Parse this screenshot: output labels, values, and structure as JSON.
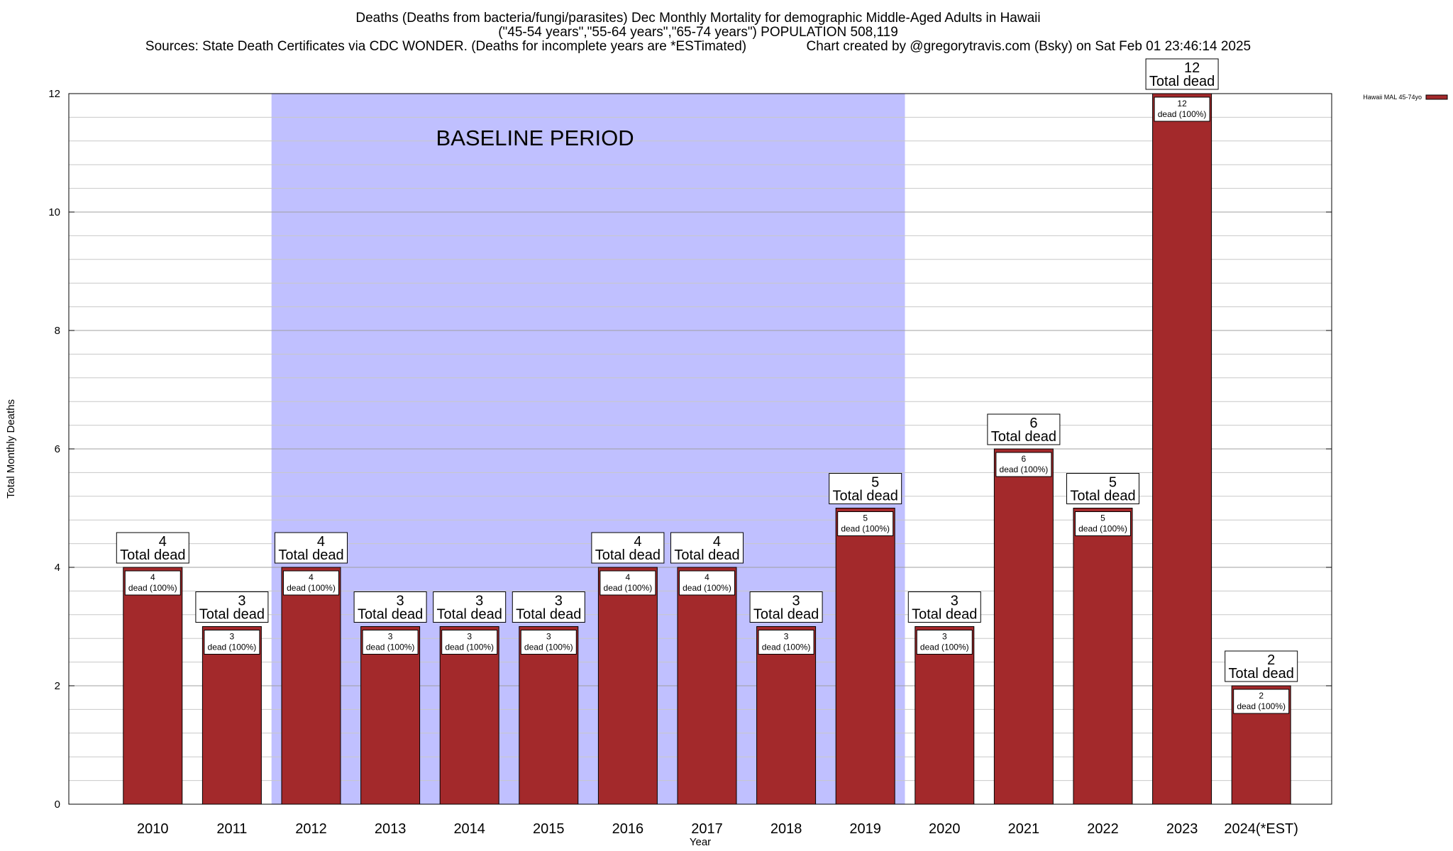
{
  "chart_data": {
    "type": "bar",
    "title_lines": [
      "Deaths (Deaths from bacteria/fungi/parasites) Dec Monthly Mortality for demographic Middle-Aged Adults in Hawaii",
      "(\"45-54 years\",\"55-64 years\",\"65-74 years\") POPULATION 508,119",
      "Sources: State Death Certificates via CDC WONDER. (Deaths for incomplete years are *ESTimated)                Chart created by @gregorytravis.com (Bsky) on Sat Feb 01 23:46:14 2025"
    ],
    "xlabel": "Year",
    "ylabel": "Total Monthly Deaths",
    "ylim": [
      0,
      12
    ],
    "y_ticks": [
      "0",
      "2",
      "4",
      "6",
      "8",
      "10",
      "12"
    ],
    "minor_grid_step": 0.4,
    "categories": [
      "2010",
      "2011",
      "2012",
      "2013",
      "2014",
      "2015",
      "2016",
      "2017",
      "2018",
      "2019",
      "2020",
      "2021",
      "2022",
      "2023",
      "2024(*EST)"
    ],
    "series": [
      {
        "name": "Hawaii MAL 45-74yo",
        "color": "#a3292b",
        "values": [
          4,
          3,
          4,
          3,
          3,
          3,
          4,
          4,
          3,
          5,
          3,
          6,
          5,
          12,
          2
        ]
      }
    ],
    "total_labels": [
      "4",
      "3",
      "4",
      "3",
      "3",
      "3",
      "4",
      "4",
      "3",
      "5",
      "3",
      "6",
      "5",
      "12",
      "2"
    ],
    "total_label_suffix": "Total dead",
    "inner_labels": [
      "4",
      "3",
      "4",
      "3",
      "3",
      "3",
      "4",
      "4",
      "3",
      "5",
      "3",
      "6",
      "5",
      "12",
      "2"
    ],
    "inner_label_suffix": "dead (100%)",
    "baseline": {
      "label": "BASELINE PERIOD",
      "start": "2012",
      "end": "2019",
      "color": "#c0c0ff"
    },
    "grid": true,
    "legend_position": "top-right"
  }
}
